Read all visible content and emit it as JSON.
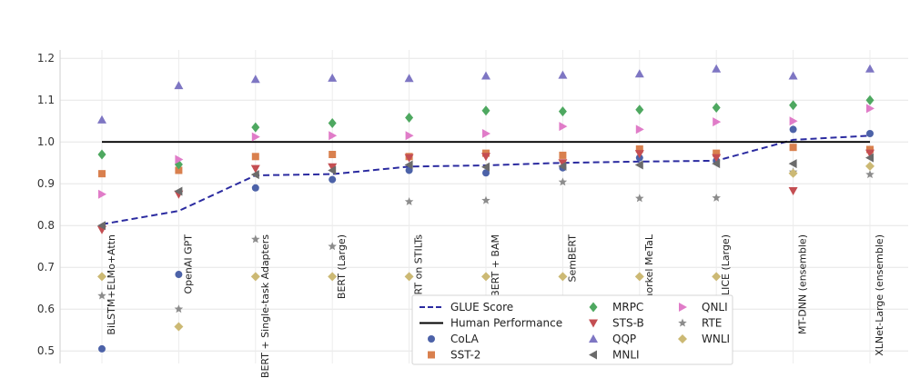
{
  "chart_data": {
    "type": "scatter",
    "title": "",
    "xlabel": "",
    "ylabel": "",
    "ylim": [
      0.47,
      1.22
    ],
    "yticks": [
      "0.5",
      "0.6",
      "0.7",
      "0.8",
      "0.9",
      "1.0",
      "1.1",
      "1.2"
    ],
    "grid": true,
    "legend_position": "bottom-center",
    "categories": [
      "BiLSTM+ELMo+Attn",
      "OpenAI GPT",
      "BERT + Single-task Adapters",
      "BERT (Large)",
      "BERT on STILTs",
      "BERT + BAM",
      "SemBERT",
      "Snorkel MeTaL",
      "ALICE (Large)",
      "MT-DNN (ensemble)",
      "XLNet-Large (ensemble)"
    ],
    "lines": [
      {
        "name": "GLUE Score",
        "color": "#2b2ba0",
        "dash": true,
        "values": [
          0.803,
          0.835,
          0.92,
          0.923,
          0.941,
          0.944,
          0.95,
          0.953,
          0.955,
          1.005,
          1.015
        ]
      },
      {
        "name": "Human Performance",
        "color": "#000000",
        "dash": false,
        "values": [
          1.0,
          1.0,
          1.0,
          1.0,
          1.0,
          1.0,
          1.0,
          1.0,
          1.0,
          1.0,
          1.0
        ]
      }
    ],
    "series": [
      {
        "name": "CoLA",
        "color": "#4c62a8",
        "marker": "circle",
        "values": [
          0.505,
          0.683,
          0.89,
          0.91,
          0.932,
          0.926,
          0.938,
          0.962,
          0.955,
          1.03,
          1.02
        ]
      },
      {
        "name": "SST-2",
        "color": "#d9804e",
        "marker": "square",
        "values": [
          0.924,
          0.932,
          0.965,
          0.97,
          0.965,
          0.973,
          0.968,
          0.983,
          0.973,
          0.987,
          0.982
        ]
      },
      {
        "name": "MRPC",
        "color": "#4ea860",
        "marker": "diamond",
        "values": [
          0.97,
          0.946,
          1.035,
          1.045,
          1.058,
          1.075,
          1.073,
          1.077,
          1.082,
          1.088,
          1.1
        ]
      },
      {
        "name": "STS-B",
        "color": "#c44e52",
        "marker": "triangle-down",
        "values": [
          0.79,
          0.875,
          0.936,
          0.94,
          0.962,
          0.965,
          0.95,
          0.972,
          0.962,
          0.883,
          0.973
        ]
      },
      {
        "name": "QQP",
        "color": "#7e76c3",
        "marker": "triangle-up",
        "values": [
          1.053,
          1.135,
          1.15,
          1.153,
          1.152,
          1.158,
          1.16,
          1.163,
          1.175,
          1.158,
          1.175
        ]
      },
      {
        "name": "MNLI",
        "color": "#6b6b6b",
        "marker": "triangle-left",
        "values": [
          0.8,
          0.882,
          0.922,
          0.932,
          0.945,
          0.94,
          0.942,
          0.945,
          0.948,
          0.948,
          0.962
        ]
      },
      {
        "name": "QNLI",
        "color": "#e07cc8",
        "marker": "triangle-right",
        "values": [
          0.875,
          0.958,
          1.012,
          1.015,
          1.015,
          1.02,
          1.037,
          1.03,
          1.048,
          1.05,
          1.08
        ]
      },
      {
        "name": "RTE",
        "color": "#8c8c8c",
        "marker": "star",
        "values": [
          0.632,
          0.6,
          0.767,
          0.75,
          0.857,
          0.86,
          0.904,
          0.865,
          0.866,
          0.928,
          0.922
        ]
      },
      {
        "name": "WNLI",
        "color": "#ccb974",
        "marker": "diamond-thin",
        "values": [
          0.678,
          0.558,
          0.678,
          0.678,
          0.678,
          0.678,
          0.678,
          0.678,
          0.678,
          0.925,
          0.942
        ]
      }
    ],
    "legend_columns": [
      [
        "GLUE Score",
        "Human Performance",
        "CoLA",
        "SST-2"
      ],
      [
        "MRPC",
        "STS-B",
        "QQP",
        "MNLI"
      ],
      [
        "QNLI",
        "RTE",
        "WNLI"
      ]
    ]
  }
}
